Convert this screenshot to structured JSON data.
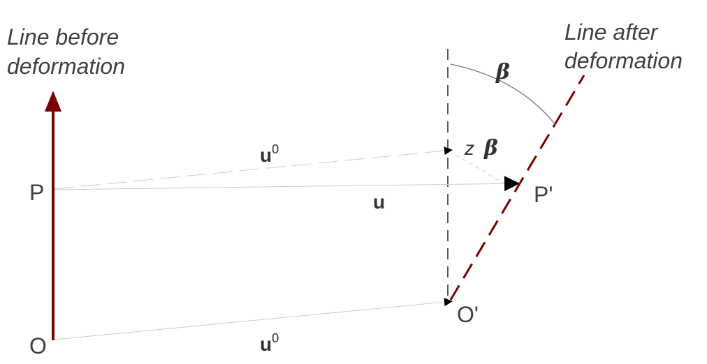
{
  "labels": {
    "line_before": [
      "Line before",
      "deformation"
    ],
    "line_after": [
      "Line after",
      "deformation"
    ],
    "point_p": "P",
    "point_o": "O",
    "point_p_prime": "P'",
    "point_o_prime": "O'",
    "vec_u0_upper": "u",
    "vec_u0_upper_sup": "0",
    "vec_u": "u",
    "vec_u0_lower": "u",
    "vec_u0_lower_sup": "0",
    "beta_angle": "β",
    "z_beta_z": "z",
    "z_beta_beta": "β"
  },
  "colors": {
    "original_line": "#7a0000",
    "deformed_line": "#7a0000",
    "vector_line": "#cccccc",
    "arrowhead": "#000000",
    "text": "#404040",
    "reference_line": "#000000",
    "arc": "#777777"
  }
}
